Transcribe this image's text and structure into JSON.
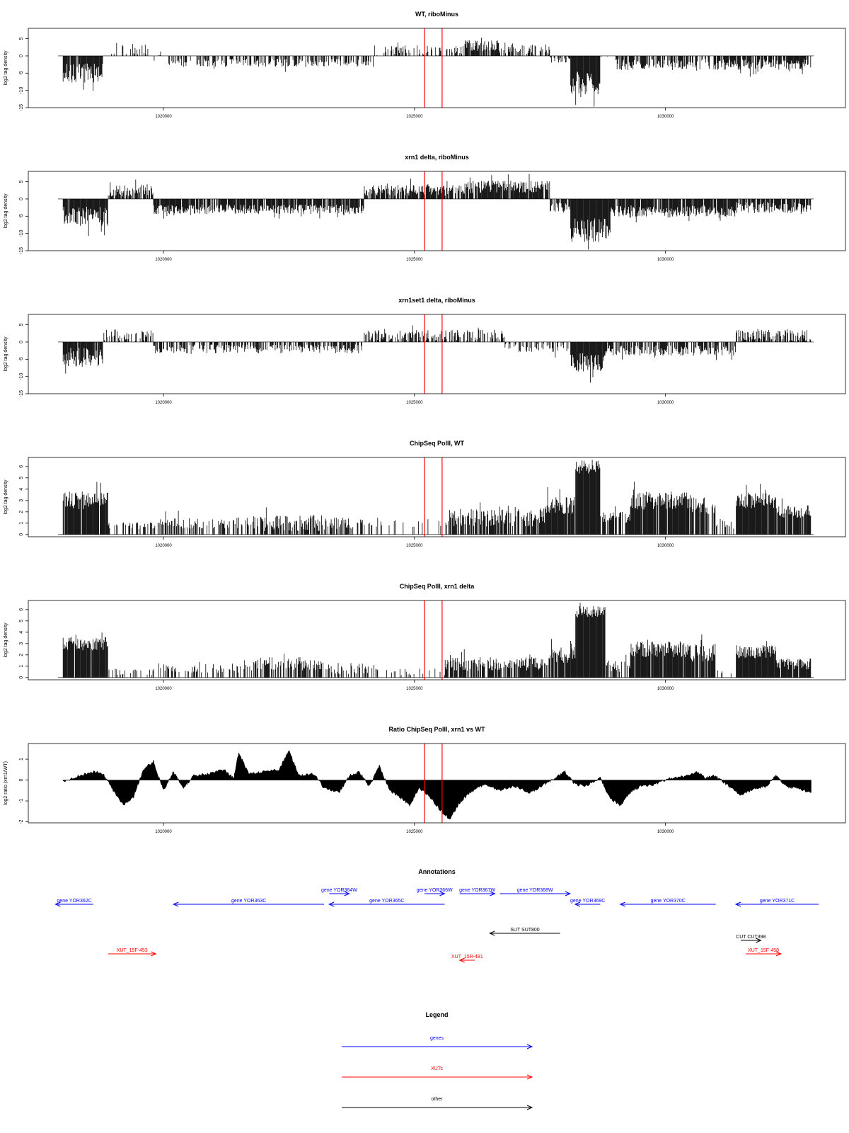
{
  "chart_data": [
    {
      "type": "bar",
      "title": "WT, riboMinus",
      "ylabel": "log2 tag density",
      "xlim": [
        1017900,
        1032950
      ],
      "ylim": [
        -15,
        8
      ],
      "yticks": [
        -15,
        -10,
        -5,
        0,
        5
      ],
      "xticks": [
        1020000,
        1025000,
        1030000
      ],
      "xtick_labels": [
        "1020000",
        "1025000",
        "1030000"
      ],
      "marker_lines": [
        1025200,
        1025550
      ],
      "marker_color": "#ff0000",
      "segments": [
        {
          "start": 1018000,
          "end": 1018800,
          "level": -5,
          "amp": 2.8,
          "dens": 0.9
        },
        {
          "start": 1018800,
          "end": 1019050,
          "level": 0,
          "amp": 1.5,
          "dens": 0.1
        },
        {
          "start": 1019050,
          "end": 1019700,
          "level": 2,
          "amp": 1.8,
          "dens": 0.35
        },
        {
          "start": 1019700,
          "end": 1020000,
          "level": 0,
          "amp": 1.5,
          "dens": 0.1
        },
        {
          "start": 1020000,
          "end": 1024200,
          "level": -2,
          "amp": 1.2,
          "dens": 0.55
        },
        {
          "start": 1024200,
          "end": 1026000,
          "level": 1.5,
          "amp": 1.6,
          "dens": 0.45
        },
        {
          "start": 1026000,
          "end": 1026700,
          "level": 3,
          "amp": 1.6,
          "dens": 0.85
        },
        {
          "start": 1026700,
          "end": 1027700,
          "level": 2,
          "amp": 1.8,
          "dens": 0.55
        },
        {
          "start": 1027700,
          "end": 1028100,
          "level": -1,
          "amp": 1,
          "dens": 0.4
        },
        {
          "start": 1028100,
          "end": 1028700,
          "level": -8,
          "amp": 3.5,
          "dens": 1
        },
        {
          "start": 1028700,
          "end": 1029000,
          "level": 0,
          "amp": 1,
          "dens": 0.1
        },
        {
          "start": 1029000,
          "end": 1032900,
          "level": -2.5,
          "amp": 1.6,
          "dens": 0.7
        }
      ]
    },
    {
      "type": "bar",
      "title": "xrn1 delta, riboMinus",
      "ylabel": "log2 tag density",
      "xlim": [
        1017900,
        1032950
      ],
      "ylim": [
        -15,
        8
      ],
      "yticks": [
        -15,
        -10,
        -5,
        0,
        5
      ],
      "xticks": [
        1020000,
        1025000,
        1030000
      ],
      "xtick_labels": [
        "1020000",
        "1025000",
        "1030000"
      ],
      "marker_lines": [
        1025200,
        1025550
      ],
      "marker_color": "#ff0000",
      "segments": [
        {
          "start": 1018000,
          "end": 1018900,
          "level": -5,
          "amp": 2.8,
          "dens": 0.95
        },
        {
          "start": 1018900,
          "end": 1019800,
          "level": 2.5,
          "amp": 1.8,
          "dens": 0.8
        },
        {
          "start": 1019800,
          "end": 1024000,
          "level": -3,
          "amp": 1.4,
          "dens": 0.85
        },
        {
          "start": 1024000,
          "end": 1026000,
          "level": 2.5,
          "amp": 1.6,
          "dens": 0.8
        },
        {
          "start": 1026000,
          "end": 1027700,
          "level": 3.5,
          "amp": 1.8,
          "dens": 0.9
        },
        {
          "start": 1027700,
          "end": 1028100,
          "level": -2.5,
          "amp": 1.5,
          "dens": 0.8
        },
        {
          "start": 1028100,
          "end": 1028900,
          "level": -9,
          "amp": 3.5,
          "dens": 1
        },
        {
          "start": 1028900,
          "end": 1031400,
          "level": -3.5,
          "amp": 1.6,
          "dens": 0.9
        },
        {
          "start": 1031400,
          "end": 1032900,
          "level": -2.5,
          "amp": 1.6,
          "dens": 0.8
        }
      ]
    },
    {
      "type": "bar",
      "title": "xrn1set1 delta, riboMinus",
      "ylabel": "log2 tag density",
      "xlim": [
        1017900,
        1032950
      ],
      "ylim": [
        -15,
        8
      ],
      "yticks": [
        -15,
        -10,
        -5,
        0,
        5
      ],
      "xticks": [
        1020000,
        1025000,
        1030000
      ],
      "xtick_labels": [
        "1020000",
        "1025000",
        "1030000"
      ],
      "marker_lines": [
        1025200,
        1025550
      ],
      "marker_color": "#ff0000",
      "segments": [
        {
          "start": 1018000,
          "end": 1018800,
          "level": -4.5,
          "amp": 2.8,
          "dens": 0.9
        },
        {
          "start": 1018800,
          "end": 1019800,
          "level": 2,
          "amp": 1.8,
          "dens": 0.55
        },
        {
          "start": 1019800,
          "end": 1024000,
          "level": -2,
          "amp": 1.3,
          "dens": 0.55
        },
        {
          "start": 1024000,
          "end": 1026800,
          "level": 2,
          "amp": 1.6,
          "dens": 0.6
        },
        {
          "start": 1026800,
          "end": 1028100,
          "level": -1.5,
          "amp": 1.5,
          "dens": 0.5
        },
        {
          "start": 1028100,
          "end": 1028800,
          "level": -6,
          "amp": 3,
          "dens": 1
        },
        {
          "start": 1028800,
          "end": 1031400,
          "level": -2.5,
          "amp": 1.5,
          "dens": 0.75
        },
        {
          "start": 1031400,
          "end": 1032900,
          "level": 2,
          "amp": 1.8,
          "dens": 0.7
        }
      ]
    },
    {
      "type": "bar",
      "title": "ChipSeq PolII, WT",
      "ylabel": "log2 tag density",
      "xlim": [
        1017900,
        1032950
      ],
      "ylim": [
        -0.2,
        6.8
      ],
      "yticks": [
        0,
        1,
        2,
        3,
        4,
        5,
        6
      ],
      "xticks": [
        1020000,
        1025000,
        1030000
      ],
      "xtick_labels": [
        "1020000",
        "1025000",
        "1030000"
      ],
      "marker_lines": [
        1025200,
        1025550
      ],
      "marker_color": "#ff0000",
      "segments": [
        {
          "start": 1018000,
          "end": 1018900,
          "level": 3,
          "amp": 0.8,
          "dens": 0.95
        },
        {
          "start": 1018900,
          "end": 1019900,
          "level": 0.8,
          "amp": 0.3,
          "dens": 0.4
        },
        {
          "start": 1019900,
          "end": 1021600,
          "level": 1,
          "amp": 0.5,
          "dens": 0.5
        },
        {
          "start": 1021600,
          "end": 1023400,
          "level": 1,
          "amp": 0.7,
          "dens": 0.65
        },
        {
          "start": 1023400,
          "end": 1024300,
          "level": 1,
          "amp": 0.5,
          "dens": 0.45
        },
        {
          "start": 1024300,
          "end": 1025600,
          "level": 1,
          "amp": 0.4,
          "dens": 0.12
        },
        {
          "start": 1025600,
          "end": 1027600,
          "level": 1.5,
          "amp": 0.8,
          "dens": 0.75
        },
        {
          "start": 1027600,
          "end": 1028200,
          "level": 2.5,
          "amp": 0.8,
          "dens": 0.9
        },
        {
          "start": 1028200,
          "end": 1028700,
          "level": 6,
          "amp": 0.6,
          "dens": 1
        },
        {
          "start": 1028700,
          "end": 1029300,
          "level": 1.5,
          "amp": 0.5,
          "dens": 0.7
        },
        {
          "start": 1029300,
          "end": 1030500,
          "level": 3,
          "amp": 0.8,
          "dens": 0.95
        },
        {
          "start": 1030500,
          "end": 1031000,
          "level": 2.5,
          "amp": 0.8,
          "dens": 0.85
        },
        {
          "start": 1031000,
          "end": 1031400,
          "level": 1,
          "amp": 0.5,
          "dens": 0.4
        },
        {
          "start": 1031400,
          "end": 1032200,
          "level": 3,
          "amp": 0.7,
          "dens": 0.95
        },
        {
          "start": 1032200,
          "end": 1032900,
          "level": 2,
          "amp": 0.6,
          "dens": 0.85
        }
      ]
    },
    {
      "type": "bar",
      "title": "ChipSeq PolII, xrn1 delta",
      "ylabel": "log2 tag density",
      "xlim": [
        1017900,
        1032950
      ],
      "ylim": [
        -0.2,
        6.8
      ],
      "yticks": [
        0,
        1,
        2,
        3,
        4,
        5,
        6
      ],
      "xticks": [
        1020000,
        1025000,
        1030000
      ],
      "xtick_labels": [
        "1020000",
        "1025000",
        "1030000"
      ],
      "marker_lines": [
        1025200,
        1025550
      ],
      "marker_color": "#ff0000",
      "segments": [
        {
          "start": 1018000,
          "end": 1018900,
          "level": 3,
          "amp": 0.6,
          "dens": 0.95
        },
        {
          "start": 1018900,
          "end": 1019900,
          "level": 0.5,
          "amp": 0.3,
          "dens": 0.3
        },
        {
          "start": 1019900,
          "end": 1021700,
          "level": 0.8,
          "amp": 0.4,
          "dens": 0.4
        },
        {
          "start": 1021700,
          "end": 1023200,
          "level": 1.2,
          "amp": 0.6,
          "dens": 0.7
        },
        {
          "start": 1023200,
          "end": 1024300,
          "level": 0.8,
          "amp": 0.5,
          "dens": 0.45
        },
        {
          "start": 1024300,
          "end": 1025600,
          "level": 0.5,
          "amp": 0.3,
          "dens": 0.15
        },
        {
          "start": 1025600,
          "end": 1027700,
          "level": 1.2,
          "amp": 0.6,
          "dens": 0.75
        },
        {
          "start": 1027700,
          "end": 1028200,
          "level": 2,
          "amp": 0.7,
          "dens": 0.9
        },
        {
          "start": 1028200,
          "end": 1028800,
          "level": 5.8,
          "amp": 0.5,
          "dens": 1
        },
        {
          "start": 1028800,
          "end": 1029300,
          "level": 1,
          "amp": 0.5,
          "dens": 0.6
        },
        {
          "start": 1029300,
          "end": 1030500,
          "level": 2.5,
          "amp": 0.7,
          "dens": 0.95
        },
        {
          "start": 1030500,
          "end": 1031000,
          "level": 2.2,
          "amp": 0.8,
          "dens": 0.85
        },
        {
          "start": 1031000,
          "end": 1031400,
          "level": 0.3,
          "amp": 0.3,
          "dens": 0.2
        },
        {
          "start": 1031400,
          "end": 1032200,
          "level": 2.3,
          "amp": 0.6,
          "dens": 0.95
        },
        {
          "start": 1032200,
          "end": 1032900,
          "level": 1.2,
          "amp": 0.5,
          "dens": 0.8
        }
      ]
    },
    {
      "type": "area",
      "title": "Ratio ChipSeq PolII, xrn1 vs WT",
      "ylabel": "log2 ratio (xrn1/WT)",
      "xlim": [
        1017900,
        1032950
      ],
      "ylim": [
        -2.05,
        1.75
      ],
      "yticks": [
        -2,
        -1,
        0,
        1
      ],
      "xticks": [
        1020000,
        1025000,
        1030000
      ],
      "xtick_labels": [
        "1020000",
        "1025000",
        "1030000"
      ],
      "marker_lines": [
        1025200,
        1025550
      ],
      "marker_color": "#ff0000",
      "points": [
        [
          1018000,
          -0.1
        ],
        [
          1018300,
          0.2
        ],
        [
          1018600,
          0.4
        ],
        [
          1018800,
          0.3
        ],
        [
          1019000,
          -0.5
        ],
        [
          1019200,
          -1.2
        ],
        [
          1019400,
          -0.8
        ],
        [
          1019600,
          0.5
        ],
        [
          1019800,
          0.9
        ],
        [
          1020000,
          -0.5
        ],
        [
          1020200,
          0.4
        ],
        [
          1020400,
          -0.4
        ],
        [
          1020600,
          0.2
        ],
        [
          1020900,
          0.3
        ],
        [
          1021200,
          0.5
        ],
        [
          1021400,
          0.1
        ],
        [
          1021500,
          1.3
        ],
        [
          1021700,
          0.3
        ],
        [
          1022000,
          0.4
        ],
        [
          1022300,
          0.5
        ],
        [
          1022500,
          1.4
        ],
        [
          1022700,
          0.2
        ],
        [
          1023000,
          0.3
        ],
        [
          1023200,
          -0.4
        ],
        [
          1023500,
          -0.6
        ],
        [
          1023700,
          0.2
        ],
        [
          1023900,
          0.4
        ],
        [
          1024100,
          -0.3
        ],
        [
          1024300,
          0.7
        ],
        [
          1024500,
          -0.5
        ],
        [
          1024700,
          -0.8
        ],
        [
          1024900,
          -1.2
        ],
        [
          1025100,
          -0.4
        ],
        [
          1025300,
          -0.8
        ],
        [
          1025500,
          -1.4
        ],
        [
          1025700,
          -1.9
        ],
        [
          1025900,
          -1.1
        ],
        [
          1026100,
          -0.6
        ],
        [
          1026400,
          -0.2
        ],
        [
          1026700,
          -0.5
        ],
        [
          1027000,
          -0.3
        ],
        [
          1027300,
          -0.6
        ],
        [
          1027600,
          -0.2
        ],
        [
          1027800,
          0.1
        ],
        [
          1028000,
          0.4
        ],
        [
          1028200,
          -0.2
        ],
        [
          1028400,
          -0.3
        ],
        [
          1028700,
          0.1
        ],
        [
          1028900,
          -0.9
        ],
        [
          1029100,
          -1.2
        ],
        [
          1029300,
          -0.6
        ],
        [
          1029500,
          -0.3
        ],
        [
          1029800,
          -0.2
        ],
        [
          1030100,
          0.1
        ],
        [
          1030400,
          0.2
        ],
        [
          1030600,
          0.4
        ],
        [
          1030800,
          0.1
        ],
        [
          1031000,
          0.2
        ],
        [
          1031200,
          -0.2
        ],
        [
          1031500,
          -0.7
        ],
        [
          1031800,
          -0.4
        ],
        [
          1032000,
          -0.3
        ],
        [
          1032200,
          0.2
        ],
        [
          1032400,
          -0.3
        ],
        [
          1032600,
          -0.4
        ],
        [
          1032900,
          -0.6
        ]
      ]
    },
    {
      "type": "annotation",
      "title": "Annotations",
      "xlim": [
        1017900,
        1032950
      ],
      "features": [
        {
          "label": "gene YOR362C",
          "start": 1017850,
          "end": 1018600,
          "strand": "-",
          "row": 1,
          "color": "#0000ff"
        },
        {
          "label": "gene YOR363C",
          "start": 1020200,
          "end": 1023200,
          "strand": "-",
          "row": 1,
          "color": "#0000ff"
        },
        {
          "label": "gene YOR364W",
          "start": 1023300,
          "end": 1023700,
          "strand": "+",
          "row": 0,
          "color": "#0000ff"
        },
        {
          "label": "gene YOR365C",
          "start": 1023300,
          "end": 1025600,
          "strand": "-",
          "row": 1,
          "color": "#0000ff"
        },
        {
          "label": "gene YOR366W",
          "start": 1025200,
          "end": 1025600,
          "strand": "+",
          "row": 0,
          "color": "#0000ff"
        },
        {
          "label": "gene YOR367W",
          "start": 1025900,
          "end": 1026600,
          "strand": "+",
          "row": 0,
          "color": "#0000ff"
        },
        {
          "label": "gene YOR368W",
          "start": 1026700,
          "end": 1028100,
          "strand": "+",
          "row": 0,
          "color": "#0000ff"
        },
        {
          "label": "gene YOR369C",
          "start": 1028200,
          "end": 1028700,
          "strand": "-",
          "row": 1,
          "color": "#0000ff"
        },
        {
          "label": "gene YOR370C",
          "start": 1029100,
          "end": 1031000,
          "strand": "-",
          "row": 1,
          "color": "#0000ff"
        },
        {
          "label": "gene YOR371C",
          "start": 1031400,
          "end": 1033050,
          "strand": "-",
          "row": 1,
          "color": "#0000ff"
        },
        {
          "label": "SUT SUT800",
          "start": 1026500,
          "end": 1027900,
          "strand": "-",
          "row": 2,
          "color": "#000000"
        },
        {
          "label": "CUT CUT398",
          "start": 1031500,
          "end": 1031900,
          "strand": "+",
          "row": 3,
          "color": "#000000"
        },
        {
          "label": "XUT_15F-453",
          "start": 1018900,
          "end": 1019850,
          "strand": "+",
          "row": 4,
          "color": "#ff0000"
        },
        {
          "label": "XUT_15R-481",
          "start": 1025900,
          "end": 1026200,
          "strand": "-",
          "row": 5,
          "color": "#ff0000"
        },
        {
          "label": "XUT_15F-458",
          "start": 1031600,
          "end": 1032300,
          "strand": "+",
          "row": 4,
          "color": "#ff0000"
        }
      ]
    },
    {
      "type": "legend",
      "title": "Legend",
      "entries": [
        {
          "label": "genes",
          "color": "#0000ff"
        },
        {
          "label": "XUTs",
          "color": "#ff0000"
        },
        {
          "label": "other",
          "color": "#000000"
        }
      ]
    }
  ]
}
